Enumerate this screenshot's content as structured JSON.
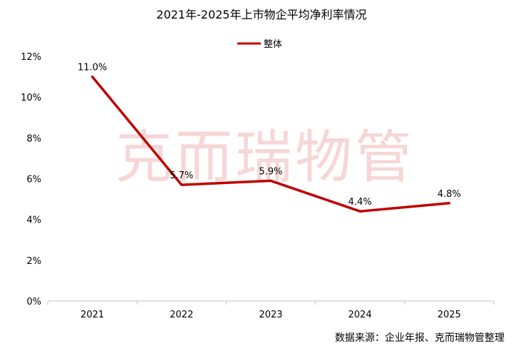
{
  "chart_data": {
    "type": "line",
    "title": "2021年-2025年上市物企平均净利率情况",
    "categories": [
      "2021",
      "2022",
      "2023",
      "2024",
      "2025"
    ],
    "series": [
      {
        "name": "整体",
        "values": [
          11.0,
          5.7,
          5.9,
          4.4,
          4.8
        ],
        "labels": [
          "11.0%",
          "5.7%",
          "5.9%",
          "4.4%",
          "4.8%"
        ]
      }
    ],
    "ylim": [
      0,
      12
    ],
    "yticks": [
      0,
      2,
      4,
      6,
      8,
      10,
      12
    ],
    "ytick_labels": [
      "0%",
      "2%",
      "4%",
      "6%",
      "8%",
      "10%",
      "12%"
    ],
    "legend": "top-center",
    "grid": false,
    "line_color": "#C00000"
  },
  "watermark": "克而瑞物管",
  "source": "数据来源：企业年报、克而瑞物管整理"
}
